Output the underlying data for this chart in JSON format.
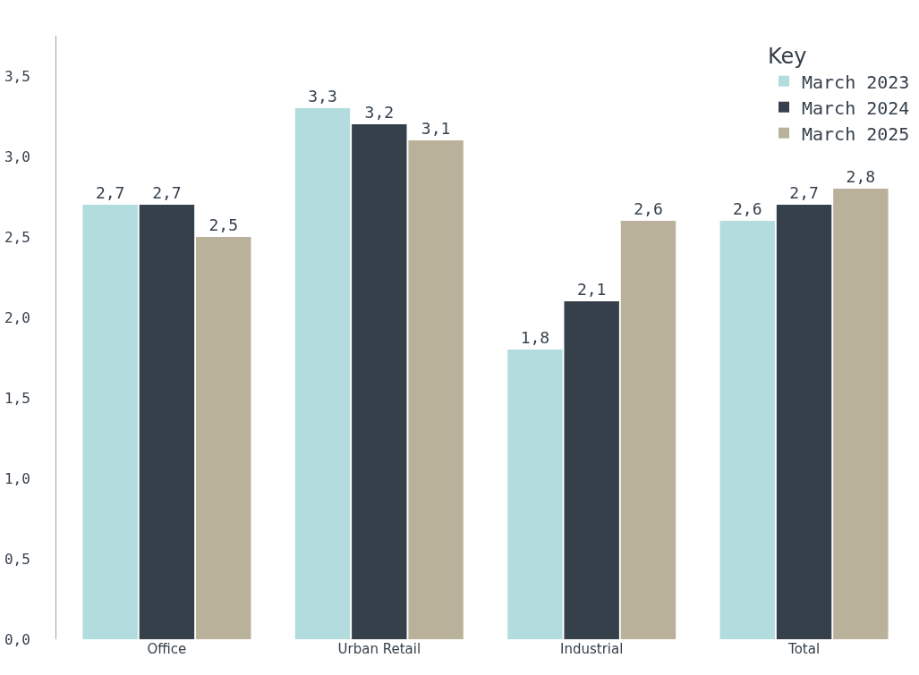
{
  "chart_data": {
    "type": "bar",
    "categories": [
      "Office",
      "Urban Retail",
      "Industrial",
      "Total"
    ],
    "series": [
      {
        "name": "March 2023",
        "color": "#b2dcdd",
        "values": [
          2.7,
          3.3,
          1.8,
          2.6
        ],
        "value_labels": [
          "2,7",
          "3,3",
          "1,8",
          "2,6"
        ]
      },
      {
        "name": "March 2024",
        "color": "#35404b",
        "values": [
          2.7,
          3.2,
          2.1,
          2.7
        ],
        "value_labels": [
          "2,7",
          "3,2",
          "2,1",
          "2,7"
        ]
      },
      {
        "name": "March 2025",
        "color": "#bab19a",
        "values": [
          2.5,
          3.1,
          2.6,
          2.8
        ],
        "value_labels": [
          "2,5",
          "3,1",
          "2,6",
          "2,8"
        ]
      }
    ],
    "legend_title": "Key",
    "legend": "top right",
    "ylim": [
      0,
      3.75
    ],
    "yticks": [
      {
        "value": 0,
        "label": "0,0"
      },
      {
        "value": 0.5,
        "label": "0,5"
      },
      {
        "value": 1,
        "label": "1,0"
      },
      {
        "value": 1.5,
        "label": "1,5"
      },
      {
        "value": 2,
        "label": "2,0"
      },
      {
        "value": 2.5,
        "label": "2,5"
      },
      {
        "value": 3,
        "label": "3,0"
      },
      {
        "value": 3.5,
        "label": "3,5"
      }
    ]
  }
}
